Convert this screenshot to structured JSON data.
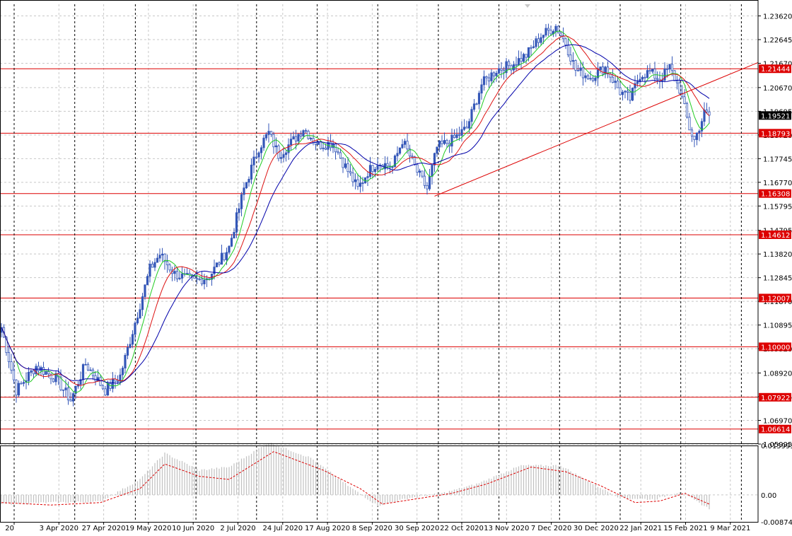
{
  "colors": {
    "background": "#ffffff",
    "grid": "#c8c8c8",
    "candle": "#3557b8",
    "ma_fast": "#22cc22",
    "ma_mid": "#dd1111",
    "ma_slow": "#0000aa",
    "level": "#dd0000",
    "trendline": "#dd0000",
    "label_bg": "#dd0000",
    "current_bg": "#000000",
    "histogram": "#c0c0c0",
    "signal": "#dd0000"
  },
  "chart_data": [
    {
      "type": "candlestick",
      "ylim": [
        1.05995,
        1.241
      ],
      "y_ticks": [
        "1.23620",
        "1.22645",
        "1.21670",
        "1.20670",
        "1.19695",
        "1.18720",
        "1.17745",
        "1.16770",
        "1.15795",
        "1.14795",
        "1.13820",
        "1.12845",
        "1.11870",
        "1.10895",
        "1.09920",
        "1.08920",
        "1.07945",
        "1.06970",
        "1.05995"
      ],
      "x_ticks": [
        "20",
        "3 Apr 2020",
        "27 Apr 2020",
        "19 May 2020",
        "10 Jun 2020",
        "2 Jul 2020",
        "24 Jul 2020",
        "17 Aug 2020",
        "8 Sep 2020",
        "30 Sep 2020",
        "22 Oct 2020",
        "13 Nov 2020",
        "7 Dec 2020",
        "30 Dec 2020",
        "22 Jan 2021",
        "15 Feb 2021",
        "9 Mar 2021"
      ],
      "horizontal_levels": [
        "1.21444",
        "1.18793",
        "1.16308",
        "1.14612",
        "1.12007",
        "1.10000",
        "1.07922",
        "1.06614"
      ],
      "current_price": "1.19521",
      "trendline": {
        "start": [
          "22 Oct 2020",
          1.162
        ],
        "end": [
          "right edge",
          1.217
        ]
      },
      "anchors": [
        {
          "i": 0,
          "p": 1.108
        },
        {
          "i": 6,
          "p": 1.082
        },
        {
          "i": 14,
          "p": 1.092
        },
        {
          "i": 22,
          "p": 1.087
        },
        {
          "i": 28,
          "p": 1.078
        },
        {
          "i": 34,
          "p": 1.093
        },
        {
          "i": 42,
          "p": 1.082
        },
        {
          "i": 48,
          "p": 1.088
        },
        {
          "i": 54,
          "p": 1.11
        },
        {
          "i": 60,
          "p": 1.132
        },
        {
          "i": 64,
          "p": 1.138
        },
        {
          "i": 70,
          "p": 1.13
        },
        {
          "i": 78,
          "p": 1.127
        },
        {
          "i": 84,
          "p": 1.129
        },
        {
          "i": 92,
          "p": 1.141
        },
        {
          "i": 98,
          "p": 1.165
        },
        {
          "i": 104,
          "p": 1.182
        },
        {
          "i": 108,
          "p": 1.188
        },
        {
          "i": 112,
          "p": 1.179
        },
        {
          "i": 118,
          "p": 1.185
        },
        {
          "i": 122,
          "p": 1.19
        },
        {
          "i": 128,
          "p": 1.183
        },
        {
          "i": 134,
          "p": 1.184
        },
        {
          "i": 138,
          "p": 1.176
        },
        {
          "i": 144,
          "p": 1.165
        },
        {
          "i": 148,
          "p": 1.172
        },
        {
          "i": 152,
          "p": 1.176
        },
        {
          "i": 158,
          "p": 1.174
        },
        {
          "i": 162,
          "p": 1.185
        },
        {
          "i": 168,
          "p": 1.172
        },
        {
          "i": 172,
          "p": 1.165
        },
        {
          "i": 176,
          "p": 1.182
        },
        {
          "i": 182,
          "p": 1.185
        },
        {
          "i": 188,
          "p": 1.19
        },
        {
          "i": 194,
          "p": 1.208
        },
        {
          "i": 200,
          "p": 1.214
        },
        {
          "i": 206,
          "p": 1.216
        },
        {
          "i": 212,
          "p": 1.22
        },
        {
          "i": 218,
          "p": 1.228
        },
        {
          "i": 224,
          "p": 1.232
        },
        {
          "i": 228,
          "p": 1.225
        },
        {
          "i": 232,
          "p": 1.214
        },
        {
          "i": 238,
          "p": 1.211
        },
        {
          "i": 244,
          "p": 1.215
        },
        {
          "i": 250,
          "p": 1.205
        },
        {
          "i": 254,
          "p": 1.202
        },
        {
          "i": 258,
          "p": 1.212
        },
        {
          "i": 262,
          "p": 1.213
        },
        {
          "i": 266,
          "p": 1.21
        },
        {
          "i": 270,
          "p": 1.215
        },
        {
          "i": 274,
          "p": 1.206
        },
        {
          "i": 278,
          "p": 1.19
        },
        {
          "i": 280,
          "p": 1.185
        },
        {
          "i": 284,
          "p": 1.196
        },
        {
          "i": 286,
          "p": 1.1952
        }
      ]
    },
    {
      "type": "histogram",
      "ylim": [
        -0.008748,
        0.015993
      ],
      "y_ticks": [
        "0.015993",
        "0.00",
        "-0.008748"
      ],
      "histogram_anchors": [
        {
          "i": 0,
          "v": -0.003
        },
        {
          "i": 20,
          "v": -0.0025
        },
        {
          "i": 40,
          "v": -0.0022
        },
        {
          "i": 56,
          "v": 0.005
        },
        {
          "i": 66,
          "v": 0.0135
        },
        {
          "i": 80,
          "v": 0.008
        },
        {
          "i": 92,
          "v": 0.009
        },
        {
          "i": 108,
          "v": 0.017
        },
        {
          "i": 125,
          "v": 0.012
        },
        {
          "i": 140,
          "v": 0.003
        },
        {
          "i": 152,
          "v": -0.0035
        },
        {
          "i": 165,
          "v": -0.001
        },
        {
          "i": 178,
          "v": 0.0005
        },
        {
          "i": 192,
          "v": 0.0035
        },
        {
          "i": 210,
          "v": 0.0095
        },
        {
          "i": 226,
          "v": 0.0095
        },
        {
          "i": 238,
          "v": 0.004
        },
        {
          "i": 250,
          "v": -0.001
        },
        {
          "i": 264,
          "v": -0.0015
        },
        {
          "i": 274,
          "v": 0.001
        },
        {
          "i": 286,
          "v": -0.0045
        }
      ],
      "signal_anchors": [
        {
          "i": 0,
          "v": -0.0025
        },
        {
          "i": 20,
          "v": -0.0033
        },
        {
          "i": 40,
          "v": -0.0025
        },
        {
          "i": 56,
          "v": 0.002
        },
        {
          "i": 66,
          "v": 0.01
        },
        {
          "i": 80,
          "v": 0.006
        },
        {
          "i": 92,
          "v": 0.005
        },
        {
          "i": 110,
          "v": 0.014
        },
        {
          "i": 130,
          "v": 0.008
        },
        {
          "i": 145,
          "v": 0.002
        },
        {
          "i": 154,
          "v": -0.003
        },
        {
          "i": 170,
          "v": -0.001
        },
        {
          "i": 182,
          "v": 0.0005
        },
        {
          "i": 196,
          "v": 0.0035
        },
        {
          "i": 214,
          "v": 0.009
        },
        {
          "i": 228,
          "v": 0.0075
        },
        {
          "i": 242,
          "v": 0.003
        },
        {
          "i": 256,
          "v": -0.0025
        },
        {
          "i": 266,
          "v": -0.002
        },
        {
          "i": 276,
          "v": 0.0005
        },
        {
          "i": 286,
          "v": -0.003
        }
      ]
    }
  ]
}
